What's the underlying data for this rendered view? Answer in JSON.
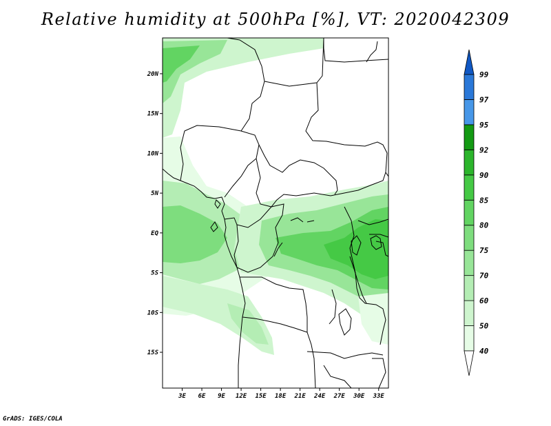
{
  "title": "Relative humidity at 500hPa [%], VT: 2020042309",
  "credit": "GrADS: IGES/COLA",
  "map": {
    "lat_labels": [
      "20N",
      "15N",
      "10N",
      "5N",
      "EQ",
      "5S",
      "10S",
      "15S"
    ],
    "lon_labels": [
      "3E",
      "6E",
      "9E",
      "12E",
      "15E",
      "18E",
      "21E",
      "24E",
      "27E",
      "30E",
      "33E"
    ],
    "lat_range": [
      -19.5,
      24.5
    ],
    "lon_range": [
      0,
      34.5
    ]
  },
  "colorbar": {
    "levels": [
      "40",
      "50",
      "60",
      "70",
      "75",
      "80",
      "85",
      "90",
      "92",
      "95",
      "97",
      "99"
    ],
    "colors": [
      "#ffffff",
      "#e6fce6",
      "#cef5ce",
      "#b4edb4",
      "#98e598",
      "#7edd7e",
      "#62d462",
      "#45c945",
      "#2cb52c",
      "#139a13",
      "#4797e8",
      "#2a78d8",
      "#1058c4"
    ]
  }
}
